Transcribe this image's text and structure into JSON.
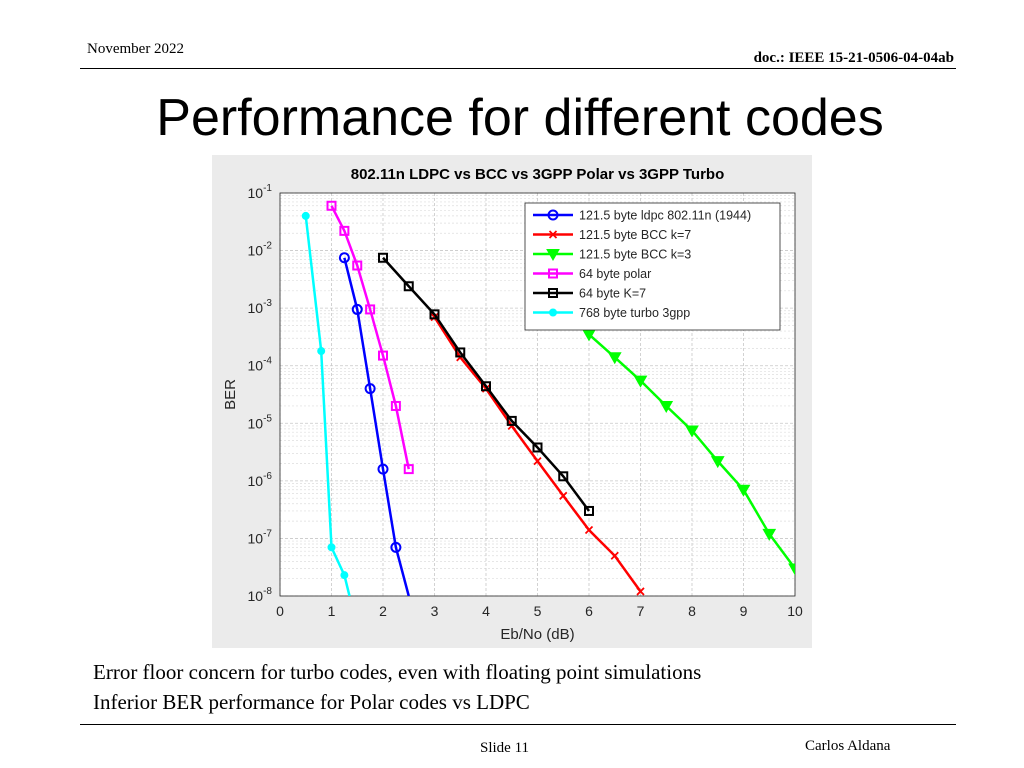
{
  "header": {
    "date": "November 2022",
    "doc_id": "doc.: IEEE 15-21-0506-04-04ab"
  },
  "slide": {
    "title": "Performance for different codes"
  },
  "notes": [
    "Error floor concern for turbo codes, even with floating point simulations",
    "Inferior BER performance for Polar codes vs LDPC"
  ],
  "footer": {
    "slide_number": "Slide 11",
    "author": "Carlos Aldana"
  },
  "chart_data": {
    "type": "line",
    "title": "802.11n LDPC vs BCC vs 3GPP Polar vs 3GPP Turbo",
    "xlabel": "Eb/No (dB)",
    "ylabel": "BER",
    "xlim": [
      0,
      10
    ],
    "ylim": [
      1e-08,
      0.1
    ],
    "yscale": "log",
    "xticks": [
      "0",
      "1",
      "2",
      "3",
      "4",
      "5",
      "6",
      "7",
      "8",
      "9",
      "10"
    ],
    "yticks": [
      {
        "base": "10",
        "exp": "-1"
      },
      {
        "base": "10",
        "exp": "-2"
      },
      {
        "base": "10",
        "exp": "-3"
      },
      {
        "base": "10",
        "exp": "-4"
      },
      {
        "base": "10",
        "exp": "-5"
      },
      {
        "base": "10",
        "exp": "-6"
      },
      {
        "base": "10",
        "exp": "-7"
      },
      {
        "base": "10",
        "exp": "-8"
      }
    ],
    "grid": true,
    "legend": "top-right",
    "series": [
      {
        "name": "121.5 byte ldpc 802.11n (1944)",
        "color": "#0000ff",
        "marker": "circle",
        "x": [
          1.25,
          1.5,
          1.75,
          2.0,
          2.25,
          2.5
        ],
        "y": [
          0.0075,
          0.00095,
          4e-05,
          1.6e-06,
          7e-08,
          1e-08
        ]
      },
      {
        "name": "121.5 byte BCC k=7",
        "color": "#ff0000",
        "marker": "x",
        "x": [
          3.0,
          3.5,
          4.0,
          4.5,
          5.0,
          5.5,
          6.0,
          6.5,
          7.0
        ],
        "y": [
          0.0007,
          0.00014,
          4e-05,
          9e-06,
          2.2e-06,
          5.5e-07,
          1.4e-07,
          5e-08,
          1.2e-08
        ]
      },
      {
        "name": "121.5 byte BCC k=3",
        "color": "#00ff00",
        "marker": "triangle-down",
        "x": [
          6.0,
          6.5,
          7.0,
          7.5,
          8.0,
          8.5,
          9.0,
          9.5,
          10.0
        ],
        "y": [
          0.00035,
          0.00014,
          5.5e-05,
          2e-05,
          7.5e-06,
          2.2e-06,
          7e-07,
          1.2e-07,
          3e-08
        ]
      },
      {
        "name": "64 byte polar",
        "color": "#ff00ff",
        "marker": "square",
        "x": [
          1.0,
          1.25,
          1.5,
          1.75,
          2.0,
          2.25,
          2.5
        ],
        "y": [
          0.06,
          0.022,
          0.0055,
          0.00095,
          0.00015,
          2e-05,
          1.6e-06
        ]
      },
      {
        "name": "64 byte K=7",
        "color": "#000000",
        "marker": "square",
        "x": [
          2.0,
          2.5,
          3.0,
          3.5,
          4.0,
          4.5,
          5.0,
          5.5,
          6.0
        ],
        "y": [
          0.0075,
          0.0024,
          0.00078,
          0.00017,
          4.4e-05,
          1.1e-05,
          3.8e-06,
          1.2e-06,
          3e-07
        ]
      },
      {
        "name": "768 byte turbo 3gpp",
        "color": "#00ffff",
        "marker": "dot",
        "x": [
          0.5,
          0.8,
          1.0,
          1.25,
          1.35
        ],
        "y": [
          0.04,
          0.00018,
          7e-08,
          2.3e-08,
          1e-08
        ]
      }
    ]
  }
}
